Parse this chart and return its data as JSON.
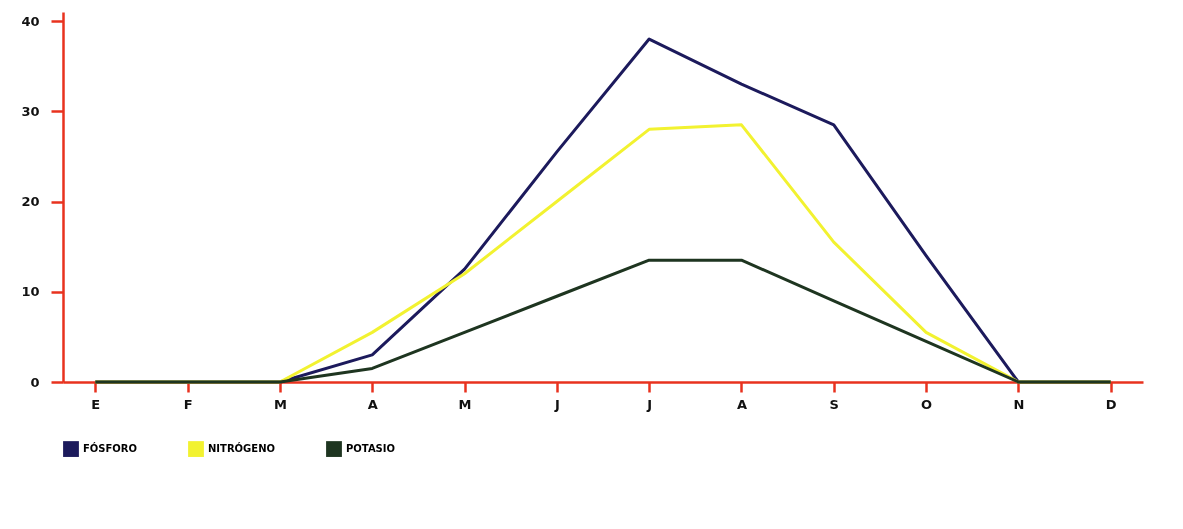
{
  "chart_data": {
    "type": "line",
    "categories": [
      "E",
      "F",
      "M",
      "A",
      "M",
      "J",
      "J",
      "A",
      "S",
      "O",
      "N",
      "D"
    ],
    "series": [
      {
        "name": "FÓSFORO",
        "color": "#1c1a5c",
        "values": [
          0,
          0,
          0,
          3,
          12.5,
          25.5,
          38,
          33,
          28.5,
          14,
          0,
          0
        ]
      },
      {
        "name": "NITRÓGENO",
        "color": "#f2f230",
        "values": [
          0,
          0,
          0,
          5.5,
          12,
          20,
          28,
          28.5,
          15.5,
          5.5,
          0,
          0
        ]
      },
      {
        "name": "POTASIO",
        "color": "#1e3520",
        "values": [
          0,
          0,
          0,
          1.5,
          5.5,
          9.5,
          13.5,
          13.5,
          9,
          4.5,
          0,
          0
        ]
      }
    ],
    "ylim": [
      0,
      41
    ],
    "yticks": [
      0,
      10,
      20,
      30,
      40
    ],
    "grid": false,
    "legend": "bottom",
    "marker": "none",
    "line_style": "solid"
  }
}
